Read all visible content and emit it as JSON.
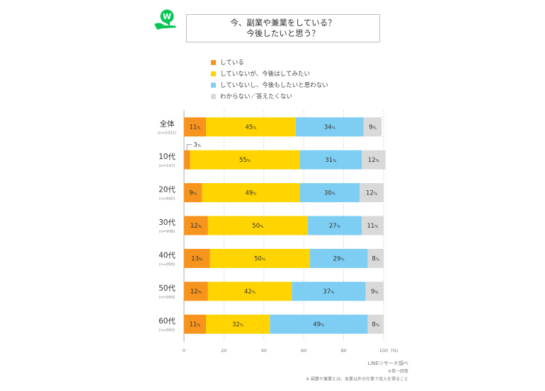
{
  "title": {
    "line1": "今、副業や兼業をしている？",
    "line2": "今後したいと思う？"
  },
  "logo": {
    "icon": "line-research-logo-icon",
    "letter": "W"
  },
  "colors": {
    "doing": "#F7941D",
    "want": "#FFD400",
    "no": "#7ECEF4",
    "unknown": "#D9D9D9",
    "brand": "#06C755"
  },
  "notes": {
    "source": "LINEリサーチ調べ",
    "note1": "※単一回答",
    "note2": "※ 副業や兼業とは、本業以外の仕事で収入を得ること"
  },
  "chart_data": {
    "type": "bar",
    "orientation": "horizontal-stacked",
    "categories": [
      "全体",
      "10代",
      "20代",
      "30代",
      "40代",
      "50代",
      "60代"
    ],
    "sample_sizes": [
      "(n=5032)",
      "(n=197)",
      "(n=840)",
      "(n=998)",
      "(n=999)",
      "(n=999)",
      "(n=999)"
    ],
    "series": [
      {
        "name": "している",
        "color_key": "doing",
        "values": [
          11,
          3,
          9,
          12,
          13,
          12,
          11
        ]
      },
      {
        "name": "していないが、今後はしてみたい",
        "color_key": "want",
        "values": [
          45,
          55,
          49,
          50,
          50,
          42,
          32
        ]
      },
      {
        "name": "していないし、今後もしたいと思わない",
        "color_key": "no",
        "values": [
          34,
          31,
          30,
          27,
          29,
          37,
          49
        ]
      },
      {
        "name": "わからない／答えたくない",
        "color_key": "unknown",
        "values": [
          9,
          12,
          12,
          11,
          8,
          9,
          8
        ]
      }
    ],
    "value_suffix": "%",
    "callout_label": "3",
    "callout_suffix": "%",
    "xlim": [
      0,
      100
    ],
    "xticks": [
      0,
      20,
      40,
      60,
      80,
      100
    ],
    "xunit": "(%)",
    "grid": true,
    "legend_placement": "top"
  }
}
